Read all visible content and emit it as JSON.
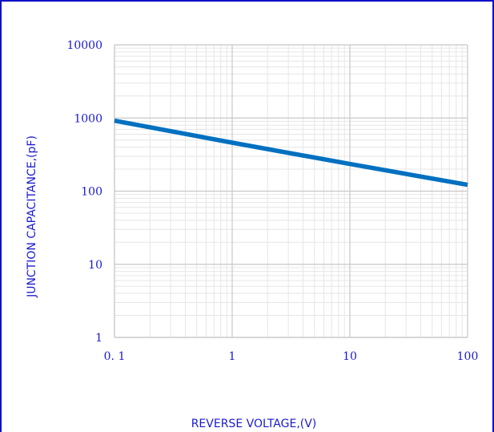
{
  "chart_data": {
    "type": "line",
    "xlabel": "REVERSE VOLTAGE,(V)",
    "ylabel": "JUNCTION CAPACITANCE,(pF)",
    "x_scale": "log",
    "y_scale": "log",
    "xlim": [
      0.1,
      100
    ],
    "ylim": [
      1,
      10000
    ],
    "x_ticks": [
      "0. 1",
      "1",
      "10",
      "100"
    ],
    "y_ticks": [
      "1",
      "10",
      "100",
      "1000",
      "10000"
    ],
    "grid": true,
    "series": [
      {
        "color": "#0070c0",
        "points": [
          [
            0.1,
            920
          ],
          [
            1,
            460
          ],
          [
            10,
            235
          ],
          [
            100,
            122
          ]
        ]
      }
    ]
  }
}
